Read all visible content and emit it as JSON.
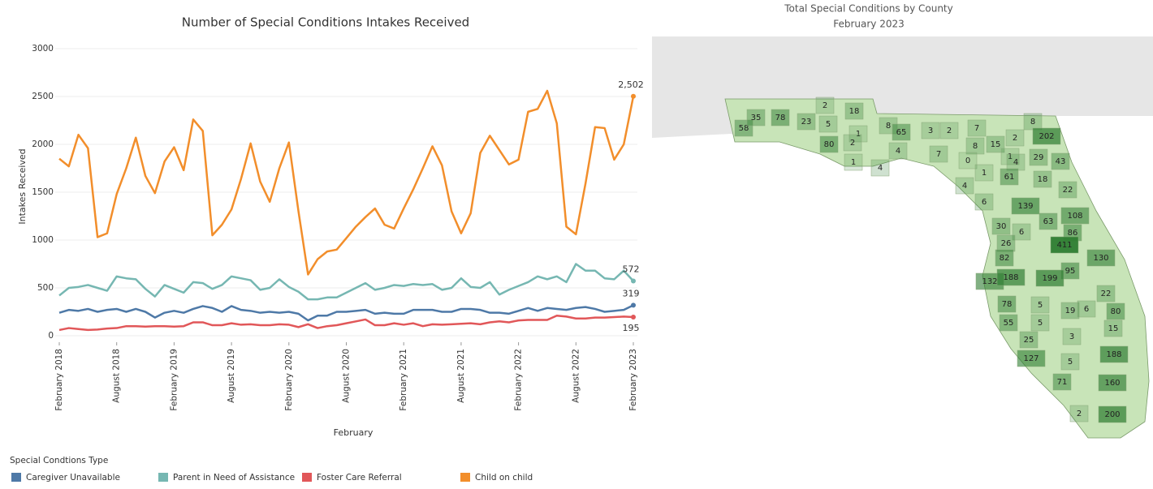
{
  "chart_data": [
    {
      "type": "line",
      "title": "Number of Special Conditions Intakes Received",
      "ylabel": "Intakes Received",
      "xlabel": "February",
      "legend_title": "Special Condtions Type",
      "ylim": [
        0,
        3000
      ],
      "yticks": [
        0,
        500,
        1000,
        1500,
        2000,
        2500,
        3000
      ],
      "grid": true,
      "categories": [
        "February 2018",
        null,
        null,
        null,
        null,
        null,
        "August 2018",
        null,
        null,
        null,
        null,
        null,
        "February 2019",
        null,
        null,
        null,
        null,
        null,
        "August 2019",
        null,
        null,
        null,
        null,
        null,
        "February 2020",
        null,
        null,
        null,
        null,
        null,
        "August 2020",
        null,
        null,
        null,
        null,
        null,
        "February 2021",
        null,
        null,
        null,
        null,
        null,
        "August 2021",
        null,
        null,
        null,
        null,
        null,
        "February 2022",
        null,
        null,
        null,
        null,
        null,
        "August 2022",
        null,
        null,
        null,
        null,
        null,
        "February 2023"
      ],
      "series": [
        {
          "name": "Caregiver Unavailable",
          "color": "#4e79a7",
          "values": [
            240,
            270,
            260,
            280,
            250,
            270,
            280,
            250,
            280,
            250,
            190,
            240,
            260,
            240,
            280,
            310,
            290,
            250,
            310,
            270,
            260,
            240,
            250,
            240,
            250,
            230,
            160,
            210,
            210,
            250,
            250,
            260,
            270,
            230,
            240,
            230,
            230,
            270,
            270,
            270,
            250,
            250,
            280,
            280,
            270,
            240,
            240,
            230,
            260,
            290,
            260,
            290,
            280,
            270,
            290,
            300,
            280,
            250,
            260,
            270,
            319
          ]
        },
        {
          "name": "Parent in Need of Assistance",
          "color": "#76b7b2",
          "values": [
            420,
            500,
            510,
            530,
            500,
            470,
            620,
            600,
            590,
            490,
            410,
            530,
            490,
            450,
            560,
            550,
            490,
            530,
            620,
            600,
            580,
            480,
            500,
            590,
            510,
            460,
            380,
            380,
            400,
            400,
            450,
            500,
            550,
            480,
            500,
            530,
            520,
            540,
            530,
            540,
            480,
            500,
            600,
            510,
            500,
            560,
            430,
            480,
            520,
            560,
            620,
            590,
            620,
            560,
            750,
            680,
            680,
            600,
            590,
            680,
            572
          ]
        },
        {
          "name": "Foster Care Referral",
          "color": "#e15759",
          "values": [
            60,
            80,
            70,
            60,
            65,
            75,
            80,
            100,
            100,
            95,
            100,
            100,
            95,
            100,
            140,
            140,
            110,
            110,
            130,
            115,
            120,
            110,
            110,
            120,
            115,
            90,
            120,
            80,
            100,
            110,
            130,
            150,
            170,
            110,
            110,
            130,
            115,
            130,
            100,
            120,
            115,
            120,
            125,
            130,
            120,
            140,
            150,
            140,
            160,
            165,
            165,
            165,
            210,
            200,
            180,
            180,
            190,
            190,
            195,
            200,
            195
          ]
        },
        {
          "name": "Child on child",
          "color": "#f28e2b",
          "values": [
            1850,
            1770,
            2100,
            1960,
            1030,
            1070,
            1480,
            1750,
            2070,
            1670,
            1490,
            1820,
            1970,
            1730,
            2260,
            2140,
            1050,
            1160,
            1320,
            1640,
            2010,
            1610,
            1400,
            1750,
            2020,
            1300,
            640,
            800,
            880,
            900,
            1020,
            1140,
            1240,
            1330,
            1160,
            1120,
            1330,
            1530,
            1750,
            1980,
            1780,
            1300,
            1070,
            1280,
            1910,
            2090,
            1940,
            1790,
            1840,
            2340,
            2370,
            2560,
            2220,
            1140,
            1060,
            1590,
            2180,
            2170,
            1840,
            2000,
            2502
          ],
          "value_labels": [
            null,
            null,
            null,
            null,
            null,
            null,
            null,
            null,
            null,
            null,
            null,
            null,
            null,
            null,
            null,
            null,
            null,
            null,
            null,
            null,
            null,
            null,
            null,
            null,
            null,
            null,
            null,
            null,
            null,
            null,
            null,
            null,
            null,
            null,
            null,
            null,
            null,
            null,
            null,
            null,
            null,
            null,
            null,
            null,
            null,
            null,
            null,
            null,
            null,
            null,
            null,
            null,
            null,
            null,
            null,
            null,
            null,
            null,
            null,
            null,
            "2,502"
          ]
        }
      ]
    },
    {
      "type": "map",
      "title": "Total Special Conditions by County",
      "subtitle": "February 2023",
      "color": "#2e7d32",
      "values": [
        58,
        35,
        78,
        23,
        2,
        5,
        18,
        80,
        1,
        2,
        1,
        4,
        8,
        65,
        4,
        3,
        2,
        7,
        7,
        2,
        8,
        202,
        8,
        15,
        1,
        4,
        29,
        43,
        0,
        1,
        61,
        18,
        22,
        4,
        6,
        139,
        108,
        63,
        30,
        6,
        86,
        26,
        411,
        82,
        130,
        95,
        132,
        188,
        199,
        22,
        78,
        5,
        19,
        6,
        80,
        55,
        5,
        15,
        25,
        3,
        127,
        5,
        188,
        71,
        160,
        2,
        200
      ]
    }
  ]
}
